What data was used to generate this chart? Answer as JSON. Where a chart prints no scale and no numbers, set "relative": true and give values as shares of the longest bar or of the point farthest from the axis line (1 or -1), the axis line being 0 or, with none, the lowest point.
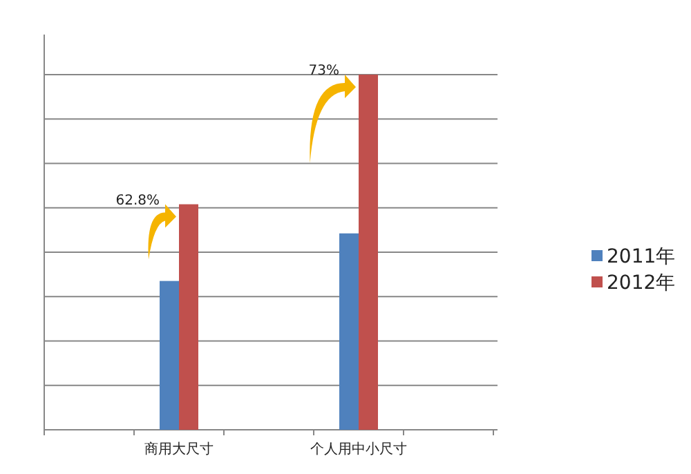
{
  "chart_data": {
    "type": "bar",
    "relative": true,
    "grid": "y",
    "legend": "right",
    "categories": [
      null,
      "商用大尺寸",
      null,
      "个人用中小尺寸",
      null
    ],
    "series": [
      {
        "name": "2011年",
        "color": "#4f81bd",
        "values": [
          null,
          0.419,
          null,
          0.553,
          null
        ]
      },
      {
        "name": "2012年",
        "color": "#c0504d",
        "values": [
          null,
          0.635,
          null,
          1,
          null
        ]
      }
    ],
    "annotations": [
      "62.8%",
      "73%"
    ]
  }
}
